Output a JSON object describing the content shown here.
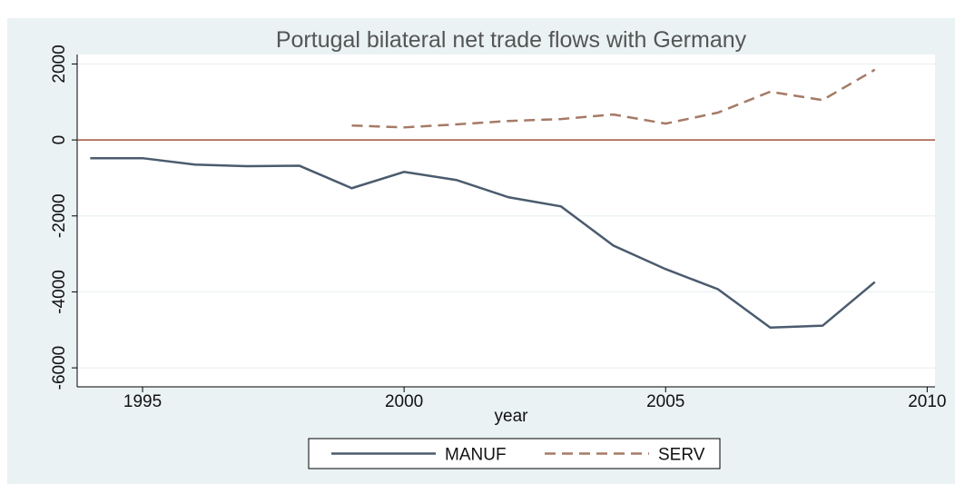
{
  "chart_data": {
    "type": "line",
    "title": "Portugal bilateral net trade flows with Germany",
    "x_label": "year",
    "x": [
      1994,
      1995,
      1996,
      1997,
      1998,
      1999,
      2000,
      2001,
      2002,
      2003,
      2004,
      2005,
      2006,
      2007,
      2008,
      2009
    ],
    "series": [
      {
        "name": "MANUF",
        "color": "#4b5b6e",
        "line_style": "solid",
        "values": [
          -480,
          -480,
          -650,
          -690,
          -680,
          -1270,
          -840,
          -1055,
          -1510,
          -1750,
          -2780,
          -3400,
          -3930,
          -4940,
          -4890,
          -3740
        ]
      },
      {
        "name": "SERV",
        "color": "#a57a66",
        "line_style": "dashed",
        "values": [
          null,
          null,
          null,
          null,
          null,
          380,
          330,
          410,
          500,
          550,
          670,
          430,
          720,
          1270,
          1050,
          1850
        ]
      }
    ],
    "xlim": [
      1993.75,
      2010.15
    ],
    "xticks": [
      1995,
      2000,
      2005,
      2010
    ],
    "ylim": [
      -6500,
      2250
    ],
    "yticks": [
      -6000,
      -4000,
      -2000,
      0,
      2000
    ],
    "yline": {
      "value": 0,
      "color": "#a0523c"
    },
    "grid": true,
    "legend": "bottom"
  }
}
